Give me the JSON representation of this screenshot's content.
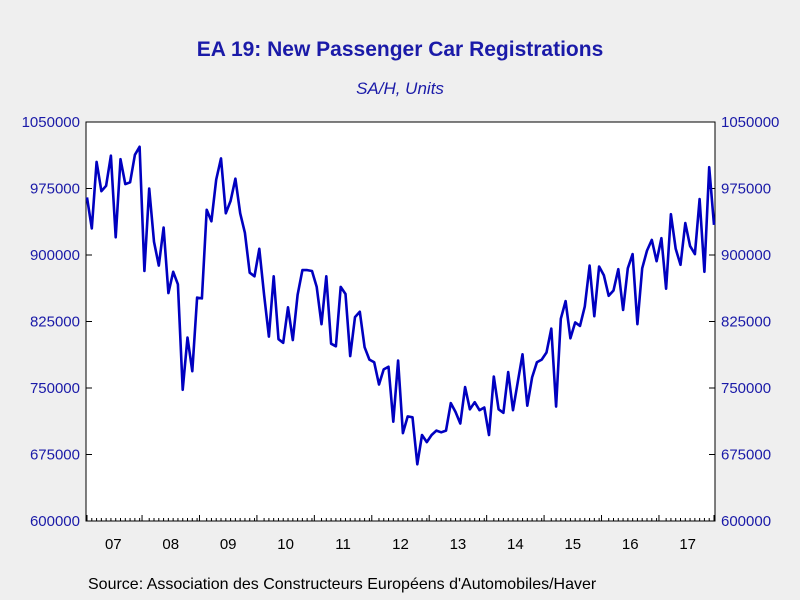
{
  "chart_data": {
    "type": "line",
    "title": "EA 19: New Passenger Car Registrations",
    "subtitle": "SA/H, Units",
    "source": "Source:  Association des Constructeurs Européens d'Automobiles/Haver",
    "ylim": [
      600000,
      1050000
    ],
    "yticks": [
      "1050000",
      "975000",
      "900000",
      "825000",
      "750000",
      "675000",
      "600000"
    ],
    "ytick_values": [
      1050000,
      975000,
      900000,
      825000,
      750000,
      675000,
      600000
    ],
    "xticks": [
      "07",
      "08",
      "09",
      "10",
      "11",
      "12",
      "13",
      "14",
      "15",
      "16",
      "17"
    ],
    "x_start": "2007-01",
    "grid": false,
    "series": [
      {
        "color": "#0000c0",
        "values": [
          965000,
          930000,
          1005000,
          972000,
          978000,
          1012000,
          920000,
          1008000,
          980000,
          982000,
          1013000,
          1022000,
          882000,
          975000,
          915000,
          888000,
          931000,
          857000,
          881000,
          867000,
          748000,
          807000,
          769000,
          852000,
          851000,
          951000,
          938000,
          985000,
          1009000,
          947000,
          961000,
          986000,
          947000,
          925000,
          880000,
          876000,
          907000,
          855000,
          808000,
          876000,
          805000,
          801000,
          841000,
          804000,
          855000,
          883000,
          883000,
          882000,
          864000,
          822000,
          876000,
          800000,
          797000,
          864000,
          856000,
          786000,
          830000,
          836000,
          796000,
          782000,
          779000,
          754000,
          771000,
          774000,
          712000,
          781000,
          699000,
          718000,
          717000,
          664000,
          697000,
          689000,
          697000,
          702000,
          700000,
          702000,
          733000,
          723000,
          710000,
          751000,
          726000,
          734000,
          725000,
          728000,
          697000,
          763000,
          726000,
          722000,
          768000,
          725000,
          757000,
          788000,
          730000,
          762000,
          779000,
          782000,
          790000,
          817000,
          729000,
          828000,
          848000,
          806000,
          824000,
          820000,
          842000,
          888000,
          831000,
          887000,
          877000,
          854000,
          860000,
          884000,
          838000,
          885000,
          901000,
          822000,
          885000,
          905000,
          917000,
          893000,
          919000,
          862000,
          946000,
          907000,
          889000,
          936000,
          910000,
          901000,
          963000,
          881000,
          999000,
          934000
        ]
      }
    ]
  }
}
